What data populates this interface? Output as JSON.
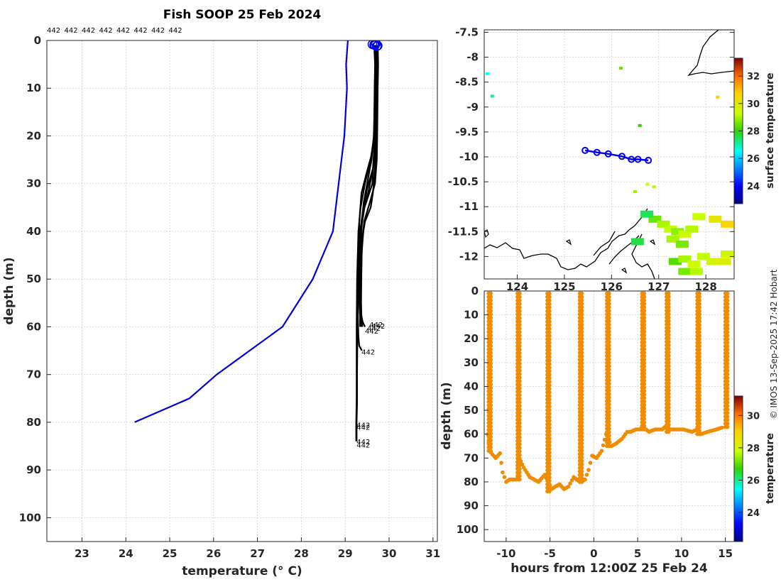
{
  "figure": {
    "title": "Fish SOOP 25 Feb 2024",
    "credit": "© IMOS 13-Sep-2025 17:42 Hobart"
  },
  "chart_data": [
    {
      "id": "profiles",
      "type": "line",
      "title": "Fish SOOP 25 Feb 2024",
      "xlabel": "temperature (° C)",
      "ylabel": "depth (m)",
      "xlim": [
        22.2,
        31.1
      ],
      "ylim": [
        105,
        0
      ],
      "xticks": [
        23,
        24,
        25,
        26,
        27,
        28,
        29,
        30,
        31
      ],
      "yticks": [
        0,
        10,
        20,
        30,
        40,
        50,
        60,
        70,
        80,
        90,
        100
      ],
      "grid": true,
      "top_labels": [
        "442",
        "442",
        "442",
        "442",
        "442",
        "442",
        "442",
        "442"
      ],
      "climatology": {
        "name": "climatology",
        "color": "#0000dd",
        "x": [
          29.06,
          29.02,
          29.04,
          28.98,
          28.72,
          28.26,
          27.57,
          26.07,
          25.45,
          24.2
        ],
        "y": [
          0,
          5,
          10,
          20,
          40,
          50,
          60,
          70,
          75,
          80
        ]
      },
      "profile_series": [
        {
          "name": "profile 1",
          "x": [
            29.68,
            29.7,
            29.69,
            29.67,
            29.65,
            29.62,
            29.44,
            29.35,
            29.33,
            29.33,
            29.33,
            29.34,
            29.34
          ],
          "y": [
            1,
            5,
            10,
            20,
            25,
            30,
            35,
            40,
            45,
            50,
            55,
            58,
            60
          ]
        },
        {
          "name": "profile 2",
          "x": [
            29.71,
            29.72,
            29.71,
            29.7,
            29.69,
            29.67,
            29.63,
            29.58,
            29.45,
            29.38,
            29.37,
            29.36,
            29.37,
            29.39
          ],
          "y": [
            1,
            5,
            10,
            20,
            25,
            28,
            32,
            35,
            38,
            42,
            48,
            55,
            58,
            60
          ]
        },
        {
          "name": "profile 3",
          "x": [
            29.66,
            29.68,
            29.67,
            29.66,
            29.6,
            29.48,
            29.37,
            29.32,
            29.3,
            29.3,
            29.29,
            29.3,
            29.32,
            29.38
          ],
          "y": [
            1,
            5,
            10,
            20,
            24,
            28,
            32,
            38,
            45,
            52,
            58,
            62,
            64,
            65
          ]
        },
        {
          "name": "profile 4",
          "x": [
            29.74,
            29.75,
            29.74,
            29.73,
            29.72,
            29.68,
            29.56,
            29.43,
            29.38,
            29.36,
            29.36,
            29.37
          ],
          "y": [
            1,
            5,
            10,
            20,
            25,
            30,
            34,
            38,
            44,
            50,
            56,
            60
          ]
        },
        {
          "name": "profile 5",
          "x": [
            29.7,
            29.7,
            29.69,
            29.66,
            29.58,
            29.45,
            29.35,
            29.3,
            29.27,
            29.26,
            29.26,
            29.26,
            29.25,
            29.25,
            29.25
          ],
          "y": [
            1,
            5,
            10,
            20,
            25,
            30,
            35,
            40,
            50,
            60,
            70,
            75,
            80,
            82,
            84
          ]
        },
        {
          "name": "profile 6",
          "x": [
            29.72,
            29.73,
            29.72,
            29.7,
            29.66,
            29.5,
            29.4,
            29.33,
            29.3,
            29.28,
            29.27,
            29.27,
            29.26,
            29.26
          ],
          "y": [
            1,
            5,
            10,
            20,
            26,
            31,
            36,
            42,
            50,
            60,
            70,
            76,
            80,
            84
          ]
        },
        {
          "name": "profile 7",
          "x": [
            29.69,
            29.7,
            29.69,
            29.68,
            29.63,
            29.52,
            29.4,
            29.34,
            29.32,
            29.33,
            29.35,
            29.4,
            29.45
          ],
          "y": [
            1,
            5,
            10,
            20,
            27,
            32,
            36,
            40,
            46,
            52,
            57,
            59,
            60
          ]
        },
        {
          "name": "profile 8",
          "x": [
            29.67,
            29.69,
            29.68,
            29.65,
            29.6,
            29.5,
            29.42,
            29.38,
            29.36,
            29.35,
            29.36,
            29.38
          ],
          "y": [
            1,
            5,
            10,
            20,
            25,
            30,
            34,
            38,
            44,
            50,
            56,
            60
          ]
        }
      ],
      "end_labels": [
        {
          "text": "442",
          "x": 29.55,
          "y": 59.5
        },
        {
          "text": "442",
          "x": 29.6,
          "y": 59.8
        },
        {
          "text": "442",
          "x": 29.5,
          "y": 60.2
        },
        {
          "text": "442",
          "x": 29.45,
          "y": 60.8
        },
        {
          "text": "442",
          "x": 29.37,
          "y": 65.2
        },
        {
          "text": "442",
          "x": 29.26,
          "y": 80.5
        },
        {
          "text": "442",
          "x": 29.26,
          "y": 81
        },
        {
          "text": "442",
          "x": 29.26,
          "y": 84
        },
        {
          "text": "442",
          "x": 29.26,
          "y": 84.7
        }
      ],
      "start_marker_x": [
        29.62,
        29.68,
        29.72,
        29.66,
        29.7,
        29.74
      ],
      "start_marker_y": [
        0.8,
        1.0,
        1.2,
        0.9,
        0.6,
        1.1
      ]
    },
    {
      "id": "map",
      "type": "scatter",
      "xlim": [
        123.3,
        128.6
      ],
      "ylim": [
        -12.45,
        -7.45
      ],
      "xticks": [
        124,
        125,
        126,
        127,
        128
      ],
      "yticks": [
        -12,
        -11.5,
        -11,
        -10.5,
        -10,
        -9.5,
        -9,
        -8.5,
        -8,
        -7.5
      ],
      "ytick_labels": [
        "-12",
        "-11.5",
        "-11",
        "-10.5",
        "-10",
        "-9.5",
        "-9",
        "-8.5",
        "-8",
        "-7.5"
      ],
      "colorbar": {
        "label": "surface temperature",
        "ticks": [
          24,
          26,
          28,
          30,
          32
        ],
        "range": [
          22.7,
          33.3
        ]
      },
      "track": {
        "lon": [
          125.44,
          125.69,
          125.93,
          126.22,
          126.42,
          126.56,
          126.78
        ],
        "lat": [
          -9.87,
          -9.91,
          -9.94,
          -9.99,
          -10.05,
          -10.05,
          -10.07
        ],
        "color": "#0000ee"
      },
      "sst_pixels": [
        {
          "lon": 126.2,
          "lat": -8.22,
          "t": 28.4
        },
        {
          "lon": 123.37,
          "lat": -8.33,
          "t": 26.5
        },
        {
          "lon": 123.47,
          "lat": -8.78,
          "t": 27.2
        },
        {
          "lon": 126.6,
          "lat": -9.37,
          "t": 28.0
        },
        {
          "lon": 126.76,
          "lat": -10.55,
          "t": 29.3
        },
        {
          "lon": 126.9,
          "lat": -10.6,
          "t": 29.1
        },
        {
          "lon": 126.5,
          "lat": -10.7,
          "t": 28.9
        },
        {
          "lon": 126.92,
          "lat": -11.25,
          "t": 28.5
        },
        {
          "lon": 126.75,
          "lat": -11.15,
          "t": 27.5
        },
        {
          "lon": 127.1,
          "lat": -11.35,
          "t": 29.0
        },
        {
          "lon": 127.25,
          "lat": -11.45,
          "t": 29.2
        },
        {
          "lon": 127.4,
          "lat": -11.5,
          "t": 28.8
        },
        {
          "lon": 127.55,
          "lat": -11.55,
          "t": 29.4
        },
        {
          "lon": 127.7,
          "lat": -11.45,
          "t": 29.1
        },
        {
          "lon": 127.3,
          "lat": -11.65,
          "t": 29.0
        },
        {
          "lon": 127.5,
          "lat": -11.75,
          "t": 28.6
        },
        {
          "lon": 127.85,
          "lat": -11.2,
          "t": 29.3
        },
        {
          "lon": 128.2,
          "lat": -11.25,
          "t": 30.1
        },
        {
          "lon": 128.45,
          "lat": -11.35,
          "t": 30.6
        },
        {
          "lon": 128.25,
          "lat": -8.8,
          "t": 30.8
        },
        {
          "lon": 127.35,
          "lat": -12.1,
          "t": 28.3
        },
        {
          "lon": 127.55,
          "lat": -12.05,
          "t": 29.0
        },
        {
          "lon": 127.75,
          "lat": -12.15,
          "t": 29.4
        },
        {
          "lon": 127.95,
          "lat": -12.0,
          "t": 29.2
        },
        {
          "lon": 128.15,
          "lat": -12.1,
          "t": 29.6
        },
        {
          "lon": 128.4,
          "lat": -12.1,
          "t": 29.8
        },
        {
          "lon": 127.55,
          "lat": -12.3,
          "t": 28.6
        },
        {
          "lon": 127.8,
          "lat": -12.3,
          "t": 29.1
        },
        {
          "lon": 128.45,
          "lat": -11.95,
          "t": 29.5
        },
        {
          "lon": 126.55,
          "lat": -11.7,
          "t": 27.6
        }
      ]
    },
    {
      "id": "timeseries",
      "type": "scatter",
      "xlabel": "hours from 12:00Z 25 Feb 24",
      "ylabel": "depth (m)",
      "xlim": [
        -12.5,
        16
      ],
      "ylim": [
        105,
        0
      ],
      "xticks": [
        -10,
        -5,
        0,
        5,
        10,
        15
      ],
      "yticks": [
        0,
        10,
        20,
        30,
        40,
        50,
        60,
        70,
        80,
        90,
        100
      ],
      "colorbar": {
        "label": "temperature",
        "ticks": [
          24,
          26,
          28,
          30
        ],
        "range": [
          22.2,
          31.2
        ]
      },
      "dots_color": "#f08c00",
      "bottom_path": {
        "hours": [
          -12.1,
          -11.9,
          -11.2,
          -10.7,
          -10.4,
          -10.0,
          -9.6,
          -8.9,
          -8.5,
          -8.0,
          -7.3,
          -6.3,
          -5.6,
          -4.8,
          -4.4,
          -3.9,
          -3.4,
          -2.9,
          -2.3,
          -1.6,
          -1.0,
          -0.6,
          -0.2,
          0.3,
          0.9,
          1.4,
          2.0,
          2.5,
          3.2,
          3.8,
          4.2,
          4.8,
          5.2,
          5.6,
          6.3,
          7.0,
          7.8,
          8.1,
          8.5,
          9.2,
          10.2,
          11.2,
          11.8,
          12.2,
          13.0,
          14.0,
          14.8
        ],
        "depths": [
          60,
          67,
          70,
          68,
          76,
          80,
          79,
          79,
          70,
          74,
          78,
          80,
          77,
          83,
          82,
          81,
          83,
          82,
          78,
          80,
          79,
          75,
          69,
          70,
          67,
          60,
          65,
          64,
          62,
          59,
          59,
          58,
          58,
          57,
          59,
          58,
          58,
          57,
          58,
          58,
          58,
          59,
          58,
          60,
          59,
          58,
          57
        ]
      },
      "profiles": [
        {
          "hours": -12.0,
          "bottom": 67
        },
        {
          "hours": -8.7,
          "bottom": 79
        },
        {
          "hours": -5.3,
          "bottom": 84
        },
        {
          "hours": -1.6,
          "bottom": 80
        },
        {
          "hours": 1.5,
          "bottom": 65
        },
        {
          "hours": 5.5,
          "bottom": 58
        },
        {
          "hours": 8.3,
          "bottom": 59
        },
        {
          "hours": 11.8,
          "bottom": 60
        },
        {
          "hours": 15.0,
          "bottom": 57
        }
      ]
    }
  ]
}
